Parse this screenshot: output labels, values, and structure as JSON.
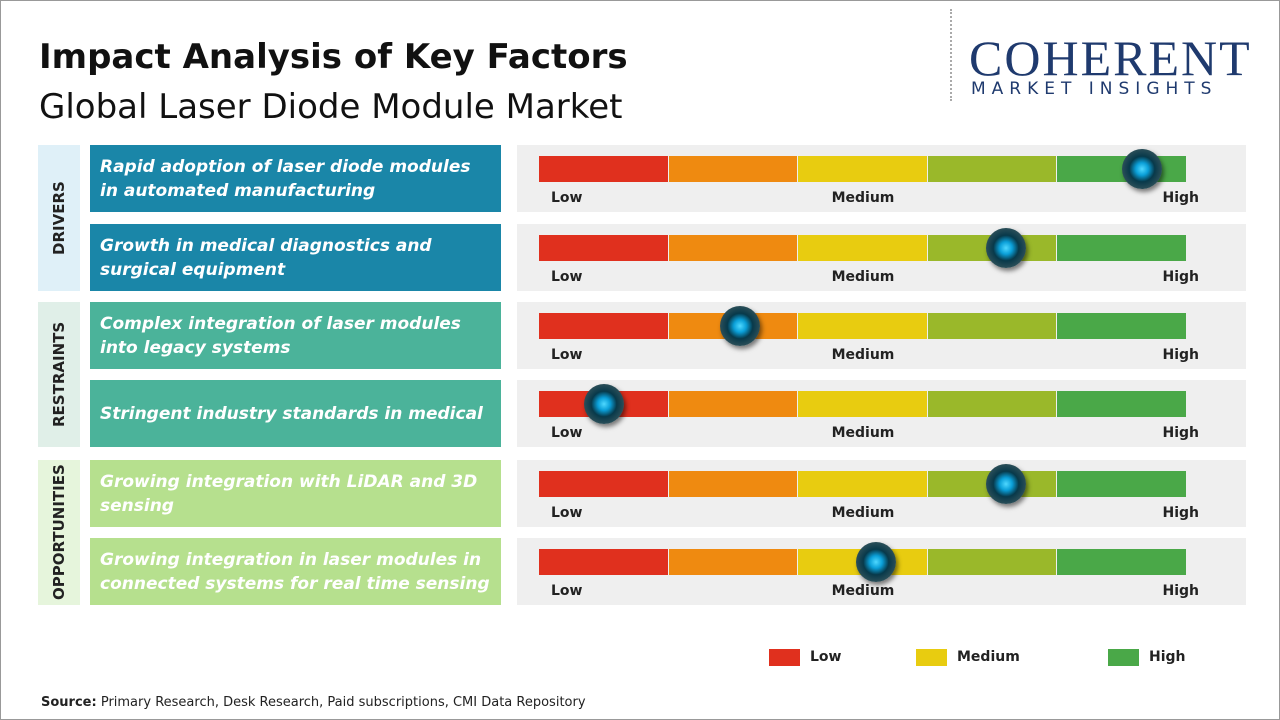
{
  "header": {
    "title": "Impact Analysis of Key Factors",
    "subtitle": "Global Laser Diode Module Market"
  },
  "logo": {
    "name": "COHERENT",
    "tagline": "MARKET INSIGHTS"
  },
  "scale": {
    "labels": [
      "Low",
      "Medium",
      "High"
    ],
    "xlim": [
      0,
      100
    ],
    "colors": [
      "#e0301e",
      "#ef8a10",
      "#e8cc10",
      "#9ab82a",
      "#4aa848"
    ]
  },
  "groups": [
    {
      "name": "DRIVERS",
      "color": "#1a86a8",
      "band": "#dff0f8",
      "factors": [
        {
          "label": "Rapid adoption of laser diode modules in automated manufacturing",
          "impact": 93
        },
        {
          "label": "Growth in medical diagnostics and surgical equipment",
          "impact": 72
        }
      ]
    },
    {
      "name": "RESTRAINTS",
      "color": "#4bb39a",
      "band": "#e0efe8",
      "factors": [
        {
          "label": "Complex integration of laser modules into legacy systems",
          "impact": 31
        },
        {
          "label": "Stringent industry standards in medical",
          "impact": 10
        }
      ]
    },
    {
      "name": "OPPORTUNITIES",
      "color": "#b6e08e",
      "band": "#e6f5dc",
      "factors": [
        {
          "label": "Growing integration with LiDAR and 3D sensing",
          "impact": 72
        },
        {
          "label": "Growing integration in laser modules in connected systems for real time sensing",
          "impact": 52
        }
      ]
    }
  ],
  "legend": [
    {
      "label": "Low",
      "color": "#e0301e"
    },
    {
      "label": "Medium",
      "color": "#e8cc10"
    },
    {
      "label": "High",
      "color": "#4aa848"
    }
  ],
  "source": {
    "label": "Source:",
    "text": "Primary Research, Desk Research, Paid subscriptions, CMI Data Repository"
  }
}
